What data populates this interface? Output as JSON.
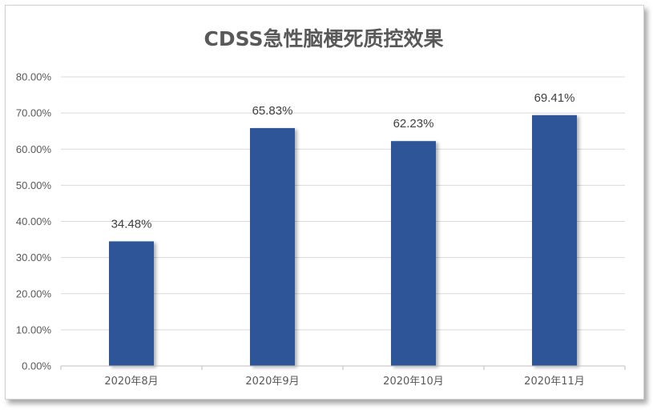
{
  "chart_data": {
    "type": "bar",
    "title": "CDSS急性脑梗死质控效果",
    "categories": [
      "2020年8月",
      "2020年9月",
      "2020年10月",
      "2020年11月"
    ],
    "values": [
      34.48,
      65.83,
      62.23,
      69.41
    ],
    "data_labels": [
      "34.48%",
      "65.83%",
      "62.23%",
      "69.41%"
    ],
    "y_ticks": [
      0,
      10,
      20,
      30,
      40,
      50,
      60,
      70,
      80
    ],
    "y_tick_labels": [
      "0.00%",
      "10.00%",
      "20.00%",
      "30.00%",
      "40.00%",
      "50.00%",
      "60.00%",
      "70.00%",
      "80.00%"
    ],
    "ylim": [
      0,
      80
    ],
    "xlabel": "",
    "ylabel": "",
    "grid": true,
    "legend": "none",
    "colors": {
      "bar": "#2E5597",
      "grid": "#d9d9d9",
      "axis": "#bfbfbf"
    }
  }
}
